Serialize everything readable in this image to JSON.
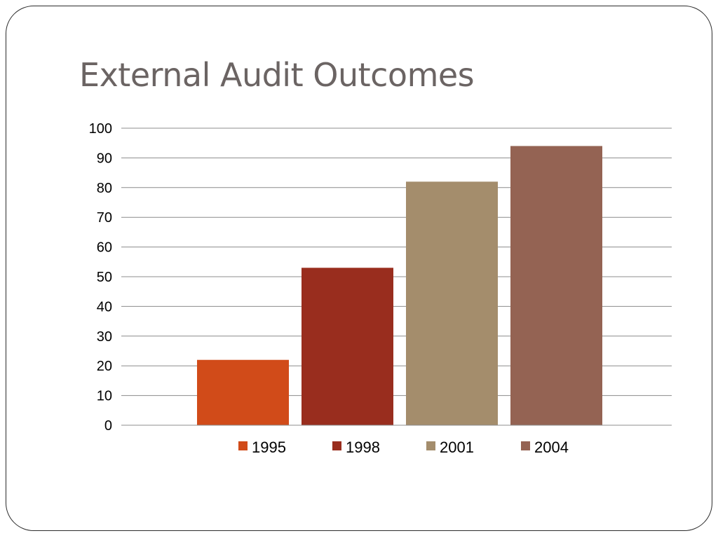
{
  "slide": {
    "title": "External Audit Outcomes"
  },
  "chart_data": {
    "type": "bar",
    "title": "",
    "xlabel": "",
    "ylabel": "",
    "ylim": [
      0,
      100
    ],
    "yticks": [
      0,
      10,
      20,
      30,
      40,
      50,
      60,
      70,
      80,
      90,
      100
    ],
    "grid": true,
    "legend_position": "bottom",
    "categories": [
      ""
    ],
    "series": [
      {
        "name": "1995",
        "values": [
          22
        ],
        "color": "#D14B19"
      },
      {
        "name": "1998",
        "values": [
          53
        ],
        "color": "#992D1E"
      },
      {
        "name": "2001",
        "values": [
          82
        ],
        "color": "#A48D6C"
      },
      {
        "name": "2004",
        "values": [
          94
        ],
        "color": "#946353"
      }
    ]
  }
}
